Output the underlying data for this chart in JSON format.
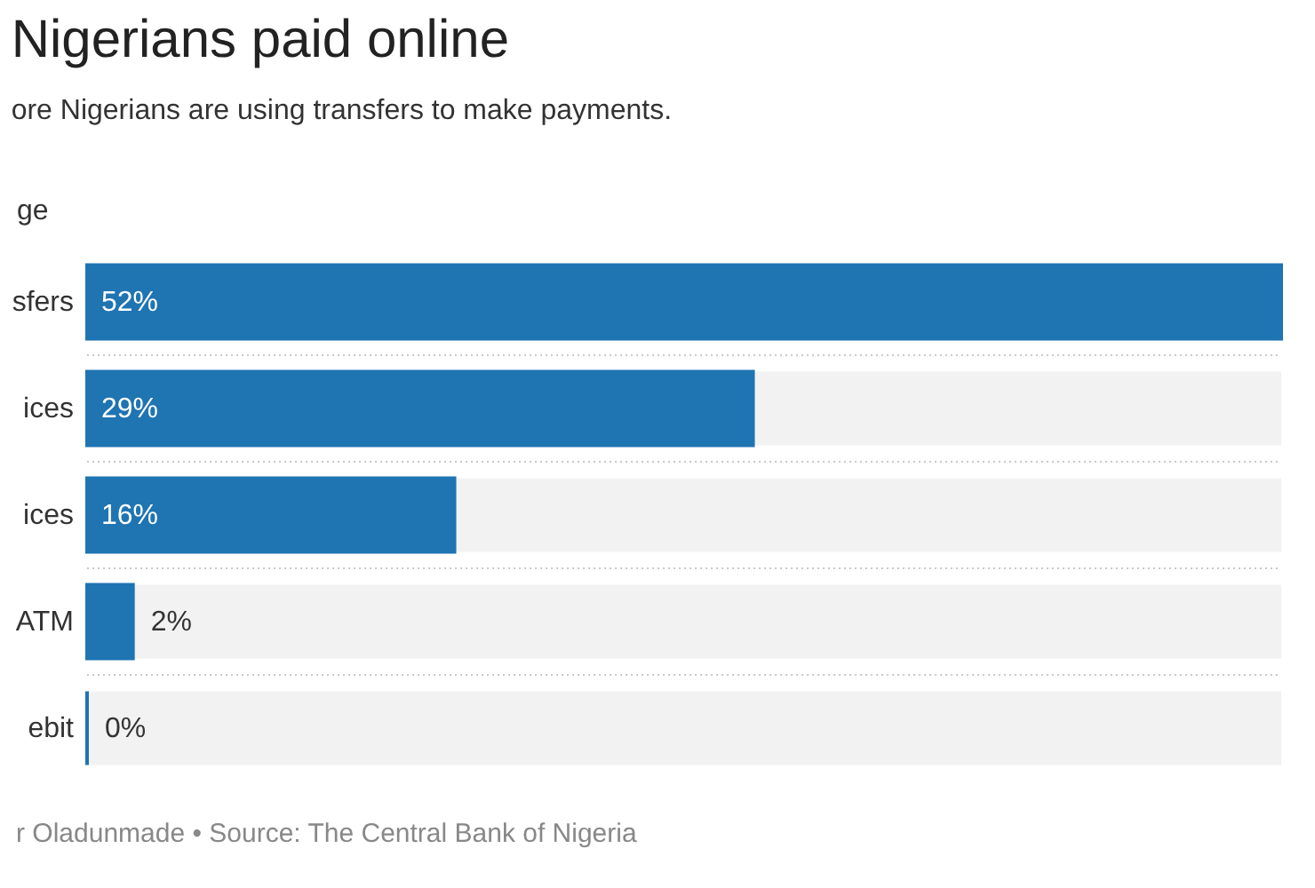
{
  "chart_data": {
    "type": "bar",
    "orientation": "horizontal",
    "title": "Nigerians paid online",
    "subtitle": "ore Nigerians are using transfers to make payments.",
    "xlabel": "ge",
    "categories": [
      "sfers",
      "ices",
      "ices",
      "ATM",
      "ebit"
    ],
    "values": [
      52,
      29,
      16,
      2,
      0
    ],
    "value_labels": [
      "52%",
      "29%",
      "16%",
      "2%",
      "0%"
    ],
    "color": "#1f74b2",
    "xlim": [
      0,
      52
    ],
    "tick_labels": "y",
    "grid": "y",
    "annotations": [
      "r Oladunmade • Source: The Central Bank of Nigeria"
    ]
  }
}
